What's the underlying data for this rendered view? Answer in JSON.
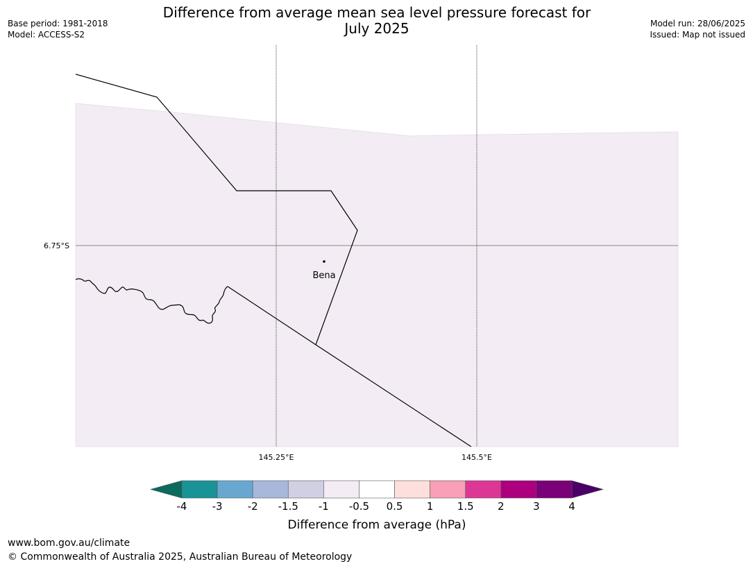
{
  "title": {
    "line1": "Difference from average mean sea level pressure forecast for",
    "line2": "July 2025"
  },
  "meta_left": {
    "base_period": "Base period: 1981-2018",
    "model": "Model: ACCESS-S2"
  },
  "meta_right": {
    "model_run": "Model run: 28/06/2025",
    "issued": "Issued: Map not issued"
  },
  "map": {
    "fill_color": "#f3ecf4",
    "latitude_labels": [
      "6.75°S"
    ],
    "longitude_labels": [
      "145.25°E",
      "145.5°E"
    ],
    "town": "Bena"
  },
  "colorbar": {
    "label": "Difference from average (hPa)",
    "ticks": [
      "-4",
      "-3",
      "-2",
      "-1.5",
      "-1",
      "-0.5",
      "0.5",
      "1",
      "1.5",
      "2",
      "3",
      "4"
    ],
    "under_color": "#0a6b5e",
    "over_color": "#4a0068",
    "colors": [
      "#1a9396",
      "#68a8d0",
      "#a7b8db",
      "#d0cfe3",
      "#f3ecf4",
      "#ffffff",
      "#fde0dd",
      "#f99fb6",
      "#dc3795",
      "#ac007e",
      "#7a0177"
    ]
  },
  "footer": {
    "url": "www.bom.gov.au/climate",
    "copyright": "© Commonwealth of Australia 2025, Australian Bureau of Meteorology"
  }
}
